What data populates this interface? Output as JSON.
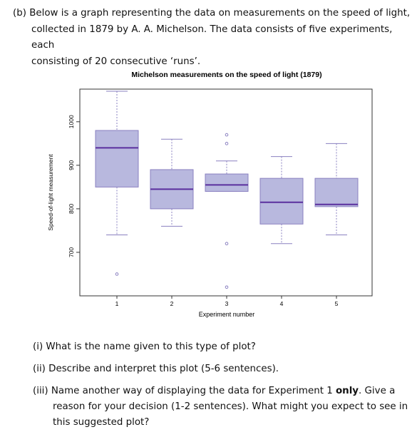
{
  "intro": {
    "line1": "(b) Below is a graph representing the data on measurements on the speed of light,",
    "line2": "collected in 1879 by A. A. Michelson. The data consists of five experiments, each",
    "line3": "consisting of 20 consecutive ‘runs’."
  },
  "questions": {
    "q1": "(i) What is the name given to this type of plot?",
    "q2": "(ii) Describe and interpret this plot (5-6 sentences).",
    "q3_part1": "(iii) Name another way of displaying the data for Experiment 1 ",
    "q3_bold": "only",
    "q3_part2": ". Give a",
    "q3_line2": "reason for your decision (1-2 sentences). What might you expect to see in",
    "q3_line3": "this suggested plot?"
  },
  "chart_data": {
    "type": "boxplot",
    "title": "Michelson measurements on the speed of light (1879)",
    "xlabel": "Experiment number",
    "ylabel": "Speed-of-light measurement",
    "categories": [
      "1",
      "2",
      "3",
      "4",
      "5"
    ],
    "yticks": [
      700,
      800,
      900,
      1000
    ],
    "ylim": [
      600,
      1075
    ],
    "grid": false,
    "colors": {
      "box_fill": "#b8b8de",
      "box_stroke": "#8a80c0",
      "median": "#5a2f9e",
      "whisker": "#8a80c0"
    },
    "boxes": [
      {
        "label": "1",
        "min": 740,
        "q1": 850,
        "median": 940,
        "q3": 980,
        "max": 1070,
        "outliers": [
          650
        ]
      },
      {
        "label": "2",
        "min": 760,
        "q1": 800,
        "median": 845,
        "q3": 890,
        "max": 960,
        "outliers": []
      },
      {
        "label": "3",
        "min": 840,
        "q1": 840,
        "median": 855,
        "q3": 880,
        "max": 910,
        "outliers": [
          620,
          720,
          950,
          970
        ]
      },
      {
        "label": "4",
        "min": 720,
        "q1": 765,
        "median": 815,
        "q3": 870,
        "max": 920,
        "outliers": []
      },
      {
        "label": "5",
        "min": 740,
        "q1": 805,
        "median": 810,
        "q3": 870,
        "max": 950,
        "outliers": []
      }
    ]
  }
}
